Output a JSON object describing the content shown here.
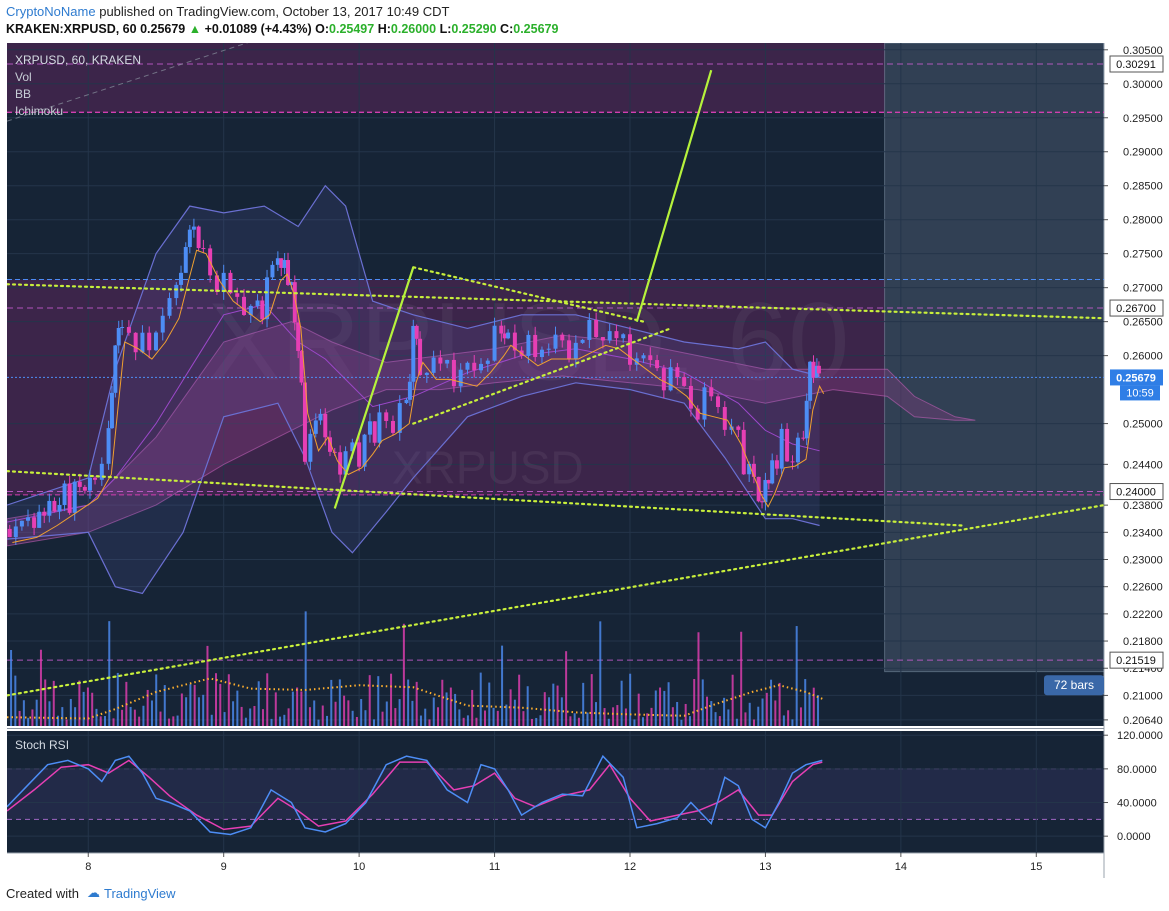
{
  "header": {
    "author": "CryptoNoName",
    "published_text": "published on TradingView.com, October 13, 2017 10:49 CDT",
    "symbol_line": "KRAKEN:XRPUSD, 60",
    "last": "0.25679",
    "change": "+0.01089 (+4.43%)",
    "open_label": "O:",
    "open": "0.25497",
    "high_label": "H:",
    "high": "0.26000",
    "low_label": "L:",
    "low": "0.25290",
    "close_label": "C:",
    "close": "0.25679"
  },
  "footer": {
    "created_with": "Created with",
    "brand": "TradingView"
  },
  "colors": {
    "background": "#162436",
    "up_candle": "#4d8df5",
    "down_candle": "#e63fb4",
    "trendline_dotted": "#c8ef3b",
    "trendline_solid": "#b6f23c",
    "bollinger": "#6a6fd1",
    "ichimoku_cloud": "#8a3d83",
    "price_tag": "#2f7ee6"
  },
  "chart_data": {
    "type": "candlestick",
    "title": "XRPUSD, 60, KRAKEN",
    "watermark_symbol": "XRPUSD",
    "watermark_interval": "60",
    "indicators": [
      "Vol",
      "BB",
      "Ichimoku"
    ],
    "x_tick_labels": [
      {
        "label": "8",
        "t": 8.0
      },
      {
        "label": "9",
        "t": 9.0
      },
      {
        "label": "10",
        "t": 10.0
      },
      {
        "label": "11",
        "t": 11.0
      },
      {
        "label": "12",
        "t": 12.0
      },
      {
        "label": "13",
        "t": 13.0
      },
      {
        "label": "14",
        "t": 14.0
      },
      {
        "label": "15",
        "t": 15.0
      }
    ],
    "x_range": [
      7.4,
      15.5
    ],
    "y_range": [
      0.2055,
      0.306
    ],
    "y_tick_labels": [
      "0.30500",
      "0.30000",
      "0.29500",
      "0.29000",
      "0.28500",
      "0.28000",
      "0.27500",
      "0.27000",
      "0.26500",
      "0.26000",
      "0.25000",
      "0.24400",
      "0.23800",
      "0.23400",
      "0.23000",
      "0.22600",
      "0.22200",
      "0.21800",
      "0.21400",
      "0.21000",
      "0.20640"
    ],
    "y_tick_values": [
      0.305,
      0.3,
      0.295,
      0.29,
      0.285,
      0.28,
      0.275,
      0.27,
      0.265,
      0.26,
      0.25,
      0.244,
      0.238,
      0.234,
      0.23,
      0.226,
      0.222,
      0.218,
      0.214,
      0.21,
      0.2064
    ],
    "price_markers": [
      {
        "label": "0.30291",
        "value": 0.30291
      },
      {
        "label": "0.26700",
        "value": 0.267
      },
      {
        "label": "0.24000",
        "value": 0.24
      },
      {
        "label": "0.21519",
        "value": 0.21519
      }
    ],
    "last_price": {
      "label": "0.25679",
      "value": 0.25679,
      "countdown": "10:59"
    },
    "projection_label": "72 bars",
    "price_path": [
      [
        7.42,
        0.2345
      ],
      [
        7.6,
        0.236
      ],
      [
        7.75,
        0.238
      ],
      [
        7.9,
        0.24
      ],
      [
        8.05,
        0.242
      ],
      [
        8.15,
        0.247
      ],
      [
        8.2,
        0.262
      ],
      [
        8.25,
        0.266
      ],
      [
        8.35,
        0.26
      ],
      [
        8.45,
        0.263
      ],
      [
        8.55,
        0.265
      ],
      [
        8.65,
        0.27
      ],
      [
        8.72,
        0.276
      ],
      [
        8.78,
        0.279
      ],
      [
        8.85,
        0.275
      ],
      [
        8.95,
        0.271
      ],
      [
        9.05,
        0.269
      ],
      [
        9.15,
        0.268
      ],
      [
        9.25,
        0.266
      ],
      [
        9.32,
        0.27
      ],
      [
        9.4,
        0.276
      ],
      [
        9.45,
        0.272
      ],
      [
        9.5,
        0.27
      ],
      [
        9.55,
        0.262
      ],
      [
        9.6,
        0.245
      ],
      [
        9.68,
        0.251
      ],
      [
        9.75,
        0.249
      ],
      [
        9.82,
        0.244
      ],
      [
        9.9,
        0.245
      ],
      [
        10.0,
        0.246
      ],
      [
        10.08,
        0.249
      ],
      [
        10.15,
        0.25
      ],
      [
        10.25,
        0.251
      ],
      [
        10.35,
        0.253
      ],
      [
        10.4,
        0.263
      ],
      [
        10.45,
        0.259
      ],
      [
        10.55,
        0.258
      ],
      [
        10.65,
        0.259
      ],
      [
        10.75,
        0.257
      ],
      [
        10.85,
        0.258
      ],
      [
        10.95,
        0.261
      ],
      [
        11.05,
        0.263
      ],
      [
        11.1,
        0.264
      ],
      [
        11.2,
        0.26
      ],
      [
        11.3,
        0.261
      ],
      [
        11.4,
        0.262
      ],
      [
        11.5,
        0.261
      ],
      [
        11.6,
        0.262
      ],
      [
        11.7,
        0.263
      ],
      [
        11.8,
        0.264
      ],
      [
        11.9,
        0.262
      ],
      [
        12.0,
        0.261
      ],
      [
        12.1,
        0.259
      ],
      [
        12.2,
        0.258
      ],
      [
        12.3,
        0.257
      ],
      [
        12.4,
        0.255
      ],
      [
        12.5,
        0.252
      ],
      [
        12.6,
        0.254
      ],
      [
        12.7,
        0.251
      ],
      [
        12.8,
        0.247
      ],
      [
        12.88,
        0.243
      ],
      [
        12.95,
        0.24
      ],
      [
        13.0,
        0.2395
      ],
      [
        13.05,
        0.244
      ],
      [
        13.12,
        0.247
      ],
      [
        13.2,
        0.2445
      ],
      [
        13.28,
        0.249
      ],
      [
        13.33,
        0.259
      ],
      [
        13.38,
        0.256
      ],
      [
        13.41,
        0.2568
      ]
    ],
    "bollinger_band": {
      "upper": [
        [
          7.4,
          0.238
        ],
        [
          8.0,
          0.242
        ],
        [
          8.2,
          0.258
        ],
        [
          8.5,
          0.275
        ],
        [
          8.75,
          0.282
        ],
        [
          9.0,
          0.281
        ],
        [
          9.3,
          0.282
        ],
        [
          9.55,
          0.279
        ],
        [
          9.75,
          0.285
        ],
        [
          9.9,
          0.282
        ],
        [
          10.1,
          0.268
        ],
        [
          10.4,
          0.266
        ],
        [
          10.8,
          0.264
        ],
        [
          11.2,
          0.266
        ],
        [
          11.6,
          0.266
        ],
        [
          12.0,
          0.264
        ],
        [
          12.4,
          0.262
        ],
        [
          12.8,
          0.261
        ],
        [
          13.0,
          0.262
        ],
        [
          13.2,
          0.258
        ],
        [
          13.4,
          0.257
        ]
      ],
      "lower": [
        [
          7.4,
          0.233
        ],
        [
          8.0,
          0.234
        ],
        [
          8.2,
          0.226
        ],
        [
          8.4,
          0.225
        ],
        [
          8.7,
          0.234
        ],
        [
          9.0,
          0.251
        ],
        [
          9.4,
          0.253
        ],
        [
          9.6,
          0.245
        ],
        [
          9.8,
          0.234
        ],
        [
          9.95,
          0.231
        ],
        [
          10.2,
          0.237
        ],
        [
          10.4,
          0.242
        ],
        [
          10.8,
          0.251
        ],
        [
          11.2,
          0.254
        ],
        [
          11.6,
          0.256
        ],
        [
          12.0,
          0.255
        ],
        [
          12.4,
          0.253
        ],
        [
          12.7,
          0.245
        ],
        [
          13.0,
          0.236
        ],
        [
          13.2,
          0.236
        ],
        [
          13.4,
          0.235
        ]
      ]
    },
    "ichimoku_cloud": {
      "top": [
        [
          7.4,
          0.236
        ],
        [
          8.0,
          0.238
        ],
        [
          8.5,
          0.248
        ],
        [
          9.0,
          0.262
        ],
        [
          9.5,
          0.265
        ],
        [
          9.8,
          0.262
        ],
        [
          10.2,
          0.259
        ],
        [
          10.6,
          0.26
        ],
        [
          11.0,
          0.261
        ],
        [
          11.5,
          0.263
        ],
        [
          12.0,
          0.262
        ],
        [
          12.5,
          0.26
        ],
        [
          13.0,
          0.258
        ],
        [
          13.5,
          0.258
        ],
        [
          13.9,
          0.258
        ],
        [
          14.1,
          0.254
        ],
        [
          14.4,
          0.251
        ],
        [
          14.55,
          0.2505
        ]
      ],
      "bottom": [
        [
          7.4,
          0.232
        ],
        [
          8.0,
          0.234
        ],
        [
          8.5,
          0.238
        ],
        [
          9.0,
          0.244
        ],
        [
          9.5,
          0.249
        ],
        [
          9.8,
          0.252
        ],
        [
          10.2,
          0.255
        ],
        [
          10.6,
          0.255
        ],
        [
          11.0,
          0.256
        ],
        [
          11.5,
          0.257
        ],
        [
          12.0,
          0.256
        ],
        [
          12.5,
          0.255
        ],
        [
          13.0,
          0.253
        ],
        [
          13.5,
          0.255
        ],
        [
          13.9,
          0.254
        ],
        [
          14.1,
          0.251
        ],
        [
          14.4,
          0.2505
        ],
        [
          14.55,
          0.2505
        ]
      ]
    },
    "trendlines": [
      {
        "style": "dotted",
        "points": [
          [
            7.4,
            0.2705
          ],
          [
            15.5,
            0.2655
          ]
        ]
      },
      {
        "style": "dotted",
        "points": [
          [
            7.4,
            0.243
          ],
          [
            14.45,
            0.235
          ]
        ]
      },
      {
        "style": "dotted",
        "points": [
          [
            7.4,
            0.21
          ],
          [
            15.5,
            0.238
          ]
        ]
      },
      {
        "style": "dotted",
        "points": [
          [
            10.4,
            0.273
          ],
          [
            12.1,
            0.265
          ]
        ]
      },
      {
        "style": "dotted",
        "points": [
          [
            10.4,
            0.25
          ],
          [
            12.3,
            0.264
          ]
        ]
      },
      {
        "style": "solid",
        "points": [
          [
            9.82,
            0.2375
          ],
          [
            10.4,
            0.273
          ]
        ]
      },
      {
        "style": "solid",
        "points": [
          [
            12.05,
            0.265
          ],
          [
            12.6,
            0.302
          ]
        ]
      }
    ],
    "volume_ma": [
      [
        7.4,
        0.2068
      ],
      [
        8.0,
        0.2066
      ],
      [
        8.2,
        0.208
      ],
      [
        8.5,
        0.2105
      ],
      [
        8.9,
        0.2125
      ],
      [
        9.2,
        0.211
      ],
      [
        9.6,
        0.2108
      ],
      [
        10.0,
        0.2115
      ],
      [
        10.4,
        0.2112
      ],
      [
        10.8,
        0.2085
      ],
      [
        11.2,
        0.2082
      ],
      [
        11.6,
        0.2075
      ],
      [
        12.0,
        0.2072
      ],
      [
        12.4,
        0.207
      ],
      [
        12.6,
        0.2085
      ],
      [
        12.9,
        0.2105
      ],
      [
        13.1,
        0.2115
      ],
      [
        13.3,
        0.2105
      ],
      [
        13.42,
        0.2095
      ]
    ],
    "stoch_rsi": {
      "title": "Stoch RSI",
      "y_range": [
        -20,
        125
      ],
      "y_tick_labels": [
        "120.0000",
        "80.0000",
        "40.0000",
        "0.0000"
      ],
      "y_tick_values": [
        120,
        80,
        40,
        0
      ],
      "bands": [
        80,
        20
      ],
      "k": [
        [
          7.4,
          35
        ],
        [
          7.55,
          60
        ],
        [
          7.7,
          85
        ],
        [
          7.85,
          90
        ],
        [
          8.0,
          80
        ],
        [
          8.1,
          65
        ],
        [
          8.2,
          90
        ],
        [
          8.3,
          95
        ],
        [
          8.4,
          75
        ],
        [
          8.5,
          45
        ],
        [
          8.6,
          40
        ],
        [
          8.75,
          30
        ],
        [
          8.9,
          5
        ],
        [
          9.05,
          2
        ],
        [
          9.2,
          10
        ],
        [
          9.35,
          55
        ],
        [
          9.5,
          40
        ],
        [
          9.6,
          10
        ],
        [
          9.75,
          5
        ],
        [
          9.9,
          15
        ],
        [
          10.05,
          40
        ],
        [
          10.2,
          85
        ],
        [
          10.35,
          95
        ],
        [
          10.5,
          90
        ],
        [
          10.65,
          55
        ],
        [
          10.8,
          40
        ],
        [
          10.9,
          85
        ],
        [
          11.0,
          80
        ],
        [
          11.1,
          55
        ],
        [
          11.2,
          25
        ],
        [
          11.35,
          40
        ],
        [
          11.5,
          50
        ],
        [
          11.65,
          48
        ],
        [
          11.8,
          95
        ],
        [
          11.95,
          70
        ],
        [
          12.05,
          10
        ],
        [
          12.2,
          15
        ],
        [
          12.35,
          22
        ],
        [
          12.45,
          40
        ],
        [
          12.6,
          15
        ],
        [
          12.7,
          70
        ],
        [
          12.8,
          60
        ],
        [
          12.9,
          20
        ],
        [
          13.0,
          10
        ],
        [
          13.1,
          40
        ],
        [
          13.2,
          75
        ],
        [
          13.3,
          85
        ],
        [
          13.42,
          90
        ]
      ],
      "d": [
        [
          7.4,
          30
        ],
        [
          7.6,
          55
        ],
        [
          7.8,
          82
        ],
        [
          8.0,
          85
        ],
        [
          8.15,
          75
        ],
        [
          8.3,
          90
        ],
        [
          8.45,
          70
        ],
        [
          8.6,
          48
        ],
        [
          8.8,
          25
        ],
        [
          9.0,
          8
        ],
        [
          9.2,
          12
        ],
        [
          9.4,
          45
        ],
        [
          9.55,
          30
        ],
        [
          9.7,
          12
        ],
        [
          9.9,
          18
        ],
        [
          10.1,
          50
        ],
        [
          10.3,
          88
        ],
        [
          10.5,
          88
        ],
        [
          10.7,
          55
        ],
        [
          10.85,
          60
        ],
        [
          11.0,
          75
        ],
        [
          11.15,
          45
        ],
        [
          11.3,
          35
        ],
        [
          11.5,
          48
        ],
        [
          11.7,
          55
        ],
        [
          11.85,
          85
        ],
        [
          12.0,
          45
        ],
        [
          12.15,
          18
        ],
        [
          12.35,
          25
        ],
        [
          12.5,
          30
        ],
        [
          12.65,
          40
        ],
        [
          12.8,
          55
        ],
        [
          12.95,
          25
        ],
        [
          13.05,
          25
        ],
        [
          13.2,
          65
        ],
        [
          13.35,
          85
        ],
        [
          13.42,
          88
        ]
      ]
    }
  }
}
